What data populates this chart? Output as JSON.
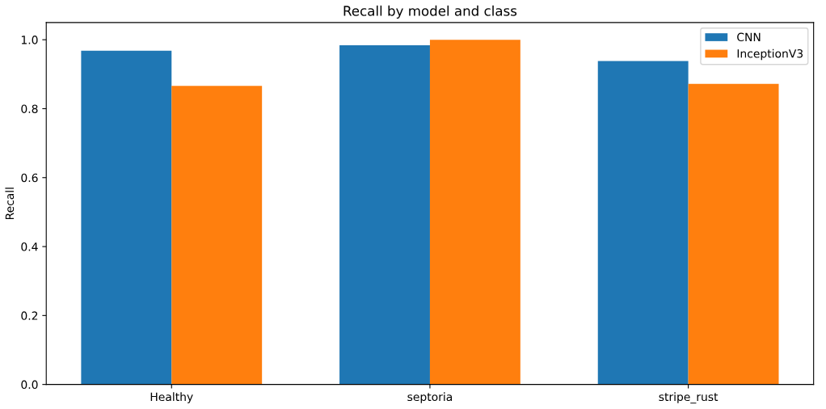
{
  "chart_data": {
    "type": "bar",
    "title": "Recall by model and class",
    "ylabel": "Recall",
    "categories": [
      "Healthy",
      "septoria",
      "stripe_rust"
    ],
    "series": [
      {
        "name": "CNN",
        "color": "#1f77b4",
        "values": [
          0.968,
          0.984,
          0.938
        ]
      },
      {
        "name": "InceptionV3",
        "color": "#ff7f0e",
        "values": [
          0.866,
          1.0,
          0.872
        ]
      }
    ],
    "ylim": [
      0,
      1.05
    ],
    "yticks": [
      {
        "value": 0,
        "label": "0.0"
      },
      {
        "value": 0.2,
        "label": "0.2"
      },
      {
        "value": 0.4,
        "label": "0.4"
      },
      {
        "value": 0.6,
        "label": "0.6"
      },
      {
        "value": 0.8,
        "label": "0.8"
      },
      {
        "value": 1.0,
        "label": "1.0"
      }
    ],
    "legend": "top right",
    "grid": false
  }
}
